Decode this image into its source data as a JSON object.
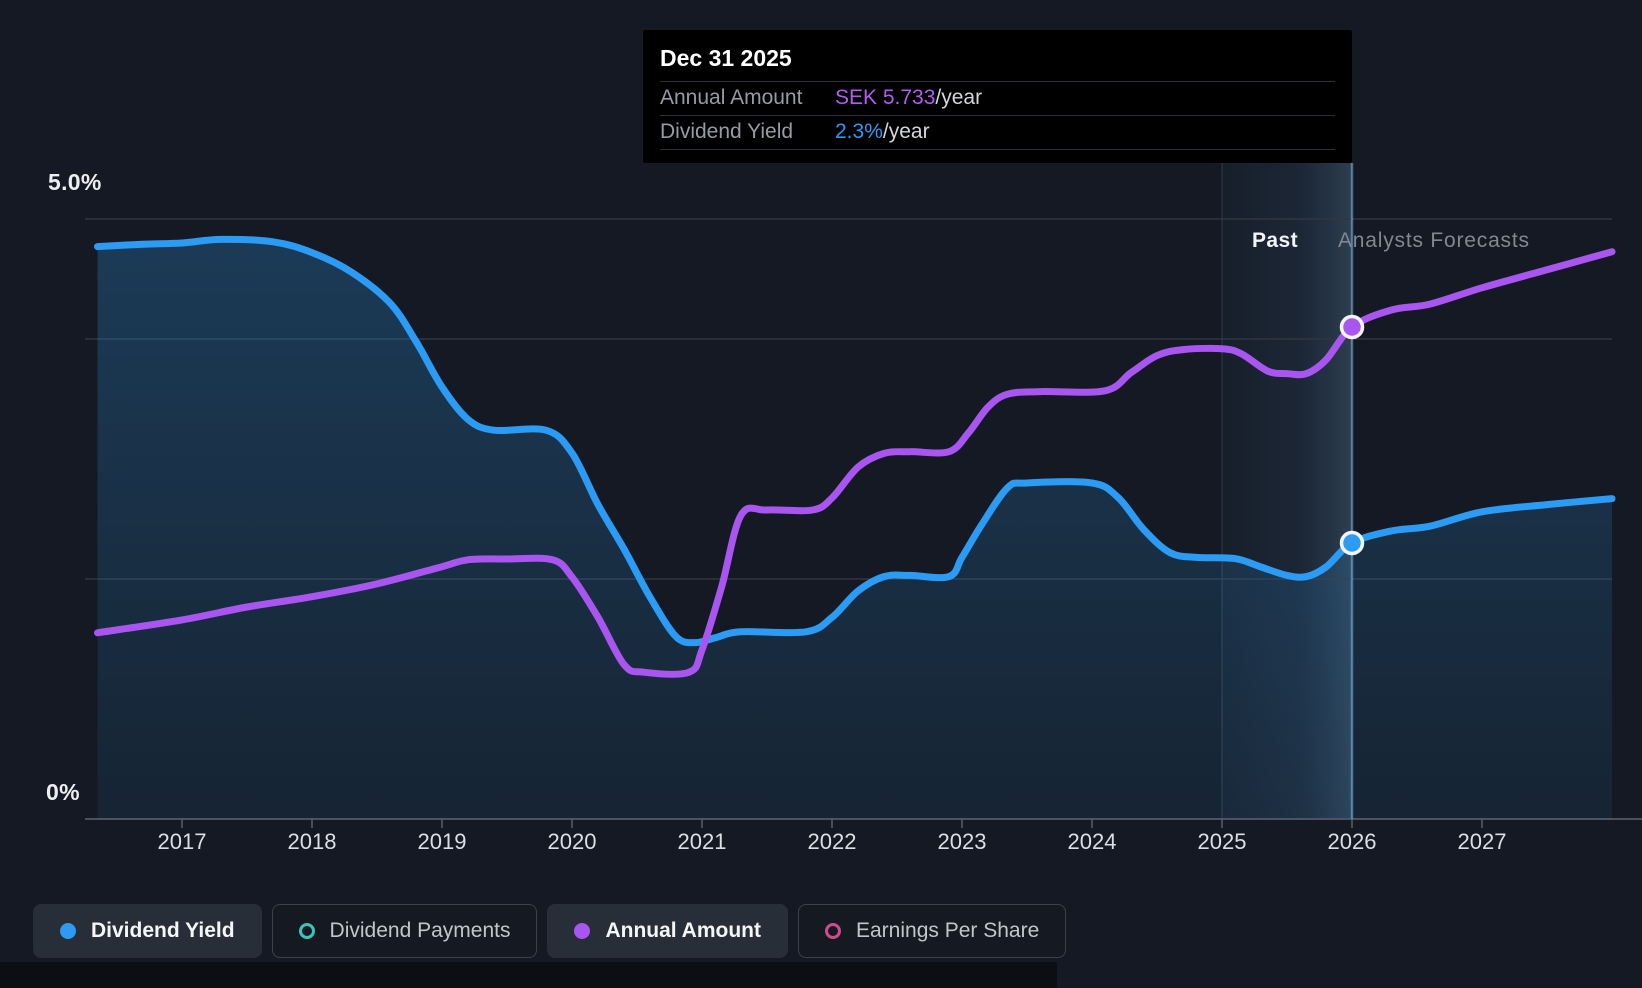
{
  "page": {
    "background": "#141923"
  },
  "tooltip": {
    "date": "Dec 31 2025",
    "rows": [
      {
        "label": "Annual Amount",
        "value": "SEK 5.733",
        "suffix": "/year",
        "color_key": "purple"
      },
      {
        "label": "Dividend Yield",
        "value": "2.3%",
        "suffix": "/year",
        "color_key": "blue"
      }
    ]
  },
  "labels": {
    "y_top": "5.0%",
    "y_bottom": "0%",
    "past": "Past",
    "forecast": "Analysts Forecasts"
  },
  "x_axis": {
    "years": [
      "2017",
      "2018",
      "2019",
      "2020",
      "2021",
      "2022",
      "2023",
      "2024",
      "2025",
      "2026",
      "2027"
    ]
  },
  "legend": [
    {
      "label": "Dividend Yield",
      "marker": "filled",
      "color": "#2b9bf4",
      "active": true
    },
    {
      "label": "Dividend Payments",
      "marker": "ring",
      "color": "#3ec3b7",
      "active": false
    },
    {
      "label": "Annual Amount",
      "marker": "filled",
      "color": "#a955f0",
      "active": true
    },
    {
      "label": "Earnings Per Share",
      "marker": "ring",
      "color": "#d04b89",
      "active": false
    }
  ],
  "colors": {
    "purple": "#b35cf3",
    "blue": "#2b9bf4",
    "line_purple": "#a955f0",
    "line_blue": "#2b9bf4",
    "grid": "#30363e",
    "axis_line": "#4b525a",
    "tick": "#596069",
    "marker_stroke": "#f2f5f7",
    "divider": "rgba(138,196,245,0.50)",
    "band_edge": "rgba(138,186,235,0.22)"
  },
  "chart_data": {
    "type": "line",
    "title": "Dividend history and forecast",
    "x_range": [
      2016.35,
      2028.0
    ],
    "x_tick_years": [
      2017,
      2018,
      2019,
      2020,
      2021,
      2022,
      2023,
      2024,
      2025,
      2026,
      2027
    ],
    "y_left": {
      "label": "Dividend Yield",
      "unit": "%",
      "range": [
        0,
        5.0
      ],
      "gridline_values": [
        5.0,
        4.0,
        2.0
      ]
    },
    "y_right": {
      "label": "Annual Amount",
      "unit": "SEK/year"
    },
    "past_band_years": [
      2025.0,
      2026.0
    ],
    "divider_year": 2026.0,
    "legend_position": "bottom",
    "grid": true,
    "series": [
      {
        "name": "Dividend Yield",
        "unit": "%",
        "color": "#2b9bf4",
        "area": true,
        "points": [
          [
            2016.35,
            4.77
          ],
          [
            2016.7,
            4.79
          ],
          [
            2017.0,
            4.8
          ],
          [
            2017.3,
            4.83
          ],
          [
            2017.7,
            4.81
          ],
          [
            2018.0,
            4.72
          ],
          [
            2018.3,
            4.56
          ],
          [
            2018.6,
            4.3
          ],
          [
            2018.8,
            3.98
          ],
          [
            2019.0,
            3.6
          ],
          [
            2019.2,
            3.33
          ],
          [
            2019.4,
            3.24
          ],
          [
            2019.8,
            3.24
          ],
          [
            2020.0,
            3.05
          ],
          [
            2020.2,
            2.62
          ],
          [
            2020.4,
            2.25
          ],
          [
            2020.6,
            1.85
          ],
          [
            2020.8,
            1.52
          ],
          [
            2020.95,
            1.47
          ],
          [
            2021.1,
            1.51
          ],
          [
            2021.3,
            1.56
          ],
          [
            2021.8,
            1.56
          ],
          [
            2022.0,
            1.68
          ],
          [
            2022.2,
            1.9
          ],
          [
            2022.4,
            2.02
          ],
          [
            2022.6,
            2.03
          ],
          [
            2022.9,
            2.02
          ],
          [
            2023.0,
            2.18
          ],
          [
            2023.15,
            2.45
          ],
          [
            2023.35,
            2.76
          ],
          [
            2023.5,
            2.8
          ],
          [
            2024.0,
            2.8
          ],
          [
            2024.2,
            2.68
          ],
          [
            2024.4,
            2.41
          ],
          [
            2024.6,
            2.22
          ],
          [
            2024.8,
            2.18
          ],
          [
            2025.1,
            2.17
          ],
          [
            2025.3,
            2.1
          ],
          [
            2025.5,
            2.03
          ],
          [
            2025.65,
            2.02
          ],
          [
            2025.8,
            2.1
          ],
          [
            2026.0,
            2.3
          ],
          [
            2026.3,
            2.4
          ],
          [
            2026.6,
            2.44
          ],
          [
            2027.0,
            2.56
          ],
          [
            2027.5,
            2.62
          ],
          [
            2028.0,
            2.67
          ]
        ]
      },
      {
        "name": "Annual Amount",
        "unit": "SEK/year",
        "color": "#a955f0",
        "area": false,
        "points": [
          [
            2016.35,
            2.17
          ],
          [
            2017.0,
            2.32
          ],
          [
            2017.5,
            2.47
          ],
          [
            2018.0,
            2.59
          ],
          [
            2018.5,
            2.74
          ],
          [
            2019.0,
            2.94
          ],
          [
            2019.2,
            3.02
          ],
          [
            2019.5,
            3.03
          ],
          [
            2019.85,
            3.02
          ],
          [
            2020.0,
            2.82
          ],
          [
            2020.2,
            2.35
          ],
          [
            2020.4,
            1.8
          ],
          [
            2020.55,
            1.71
          ],
          [
            2020.9,
            1.71
          ],
          [
            2021.0,
            1.97
          ],
          [
            2021.15,
            2.7
          ],
          [
            2021.3,
            3.54
          ],
          [
            2021.5,
            3.6
          ],
          [
            2021.85,
            3.6
          ],
          [
            2022.0,
            3.74
          ],
          [
            2022.2,
            4.1
          ],
          [
            2022.4,
            4.26
          ],
          [
            2022.6,
            4.28
          ],
          [
            2022.9,
            4.28
          ],
          [
            2023.05,
            4.5
          ],
          [
            2023.2,
            4.8
          ],
          [
            2023.35,
            4.95
          ],
          [
            2023.6,
            4.98
          ],
          [
            2024.1,
            4.99
          ],
          [
            2024.3,
            5.2
          ],
          [
            2024.5,
            5.4
          ],
          [
            2024.7,
            5.47
          ],
          [
            2025.0,
            5.48
          ],
          [
            2025.15,
            5.42
          ],
          [
            2025.35,
            5.22
          ],
          [
            2025.5,
            5.19
          ],
          [
            2025.65,
            5.19
          ],
          [
            2025.8,
            5.35
          ],
          [
            2026.0,
            5.733
          ],
          [
            2026.3,
            5.93
          ],
          [
            2026.6,
            6.0
          ],
          [
            2027.0,
            6.19
          ],
          [
            2027.5,
            6.4
          ],
          [
            2028.0,
            6.61
          ]
        ]
      }
    ],
    "markers": [
      {
        "series": "Annual Amount",
        "x": 2026.0,
        "y": 5.733
      },
      {
        "series": "Dividend Yield",
        "x": 2026.0,
        "y": 2.3
      }
    ]
  }
}
